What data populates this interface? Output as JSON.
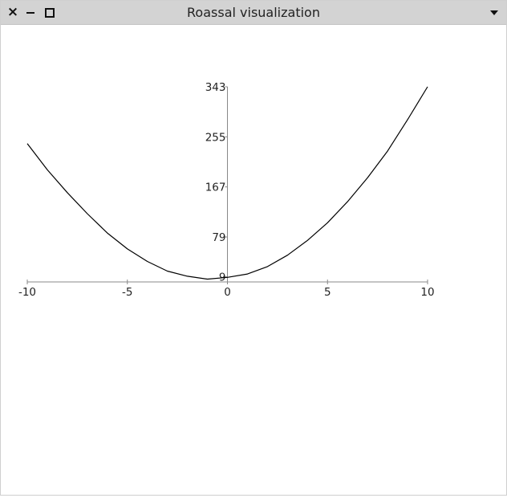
{
  "window": {
    "title": "Roassal visualization",
    "close_icon": "close-icon",
    "minimize_icon": "minimize-icon",
    "maximize_icon": "maximize-icon",
    "menu_icon": "chevron-down-icon"
  },
  "chart_data": {
    "type": "line",
    "title": "",
    "xlabel": "",
    "ylabel": "",
    "xlim": [
      -10,
      10
    ],
    "ylim": [
      0,
      343
    ],
    "x_ticks": [
      -10,
      -5,
      0,
      5,
      10
    ],
    "x_tick_labels": [
      "-10",
      "-5",
      "0",
      "5",
      "10"
    ],
    "y_ticks": [
      9,
      79,
      167,
      255,
      343
    ],
    "y_tick_labels": [
      "9",
      "79",
      "167",
      "255",
      "343"
    ],
    "grid": false,
    "line_color": "#000000",
    "axis_color": "#888888",
    "series": [
      {
        "x": [
          -10,
          -9,
          -8,
          -7,
          -6,
          -5,
          -4,
          -3,
          -2,
          -1,
          0,
          1,
          2,
          3,
          4,
          5,
          6,
          7,
          8,
          9,
          10
        ],
        "values": [
          243,
          197,
          157,
          120,
          86,
          58,
          36,
          19,
          10,
          5,
          8,
          14,
          27,
          47,
          73,
          104,
          141,
          183,
          230,
          285,
          343
        ]
      }
    ]
  }
}
